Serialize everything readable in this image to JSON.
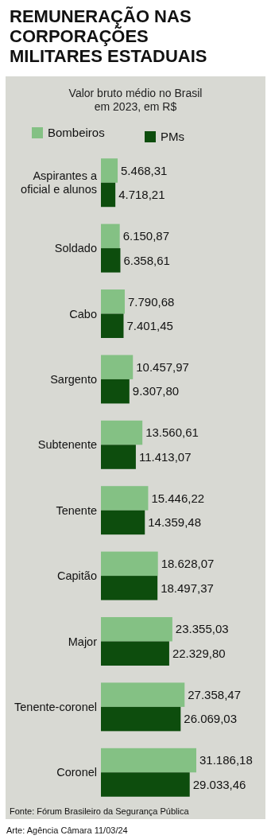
{
  "chart_data": {
    "type": "bar",
    "orientation": "horizontal",
    "title": "REMUNERAÇÃO NAS CORPORAÇÕES MILITARES ESTADUAIS",
    "subtitle": "Valor bruto médio no Brasil em 2023, em R$",
    "categories": [
      "Aspirantes a oficial e alunos",
      "Soldado",
      "Cabo",
      "Sargento",
      "Subtenente",
      "Tenente",
      "Capitão",
      "Major",
      "Tenente-coronel",
      "Coronel"
    ],
    "series": [
      {
        "name": "Bombeiros",
        "color": "#84c184",
        "values": [
          5468.31,
          6150.87,
          7790.68,
          10457.97,
          13560.61,
          15446.22,
          18628.07,
          23355.03,
          27358.47,
          31186.18
        ],
        "value_labels": [
          "5.468,31",
          "6.150,87",
          "7.790,68",
          "10.457,97",
          "13.560,61",
          "15.446,22",
          "18.628,07",
          "23.355,03",
          "27.358,47",
          "31.186,18"
        ]
      },
      {
        "name": "PMs",
        "color": "#0d4d0d",
        "values": [
          4718.21,
          6358.61,
          7401.45,
          9307.8,
          11413.07,
          14359.48,
          18497.37,
          22329.8,
          26069.03,
          29033.46
        ],
        "value_labels": [
          "4.718,21",
          "6.358,61",
          "7.401,45",
          "9.307,80",
          "11.413,07",
          "14.359,48",
          "18.497,37",
          "22.329,80",
          "26.069,03",
          "29.033,46"
        ]
      }
    ],
    "legend": "top",
    "annotations": [
      "Fonte: Fórum Brasileiro da Segurança Pública",
      "Arte: Agência Câmara 11/03/24"
    ]
  }
}
